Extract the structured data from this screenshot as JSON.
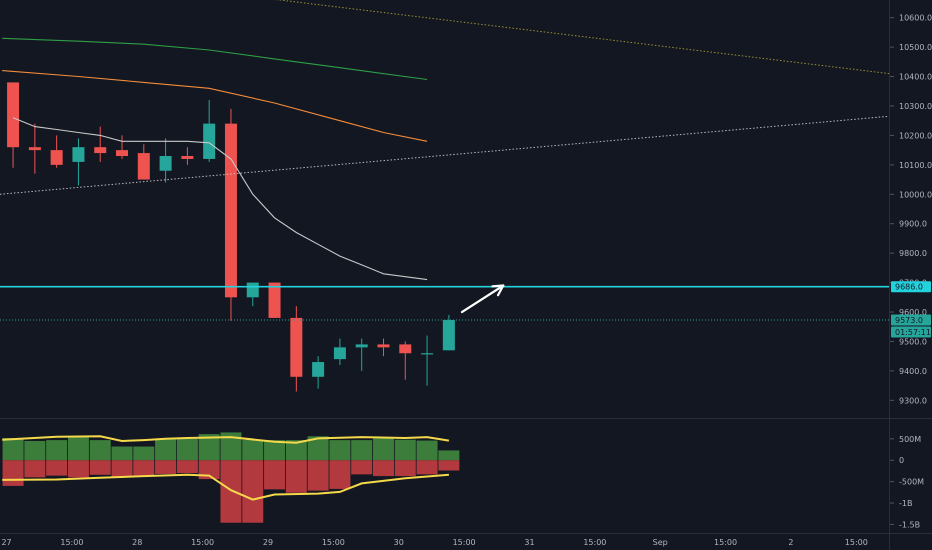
{
  "chart_data": {
    "type": "candlestick",
    "colors": {
      "background": "#131722",
      "up": "#26a69a",
      "down": "#ef5350",
      "grid": "#1e222d",
      "axis_text": "#b2b5be",
      "resistance": "#22d3dd",
      "last_price": "#26a69a",
      "ma_short": "#c9c9c9",
      "ma_mid": "#f48c3a",
      "ma_long": "#2e9e45",
      "ma_longest": "#b5a635",
      "trendline": "#d8d8d8",
      "vol_up": "#3d7d3b",
      "vol_down": "#b23a3f",
      "osc_line": "#f5d94a",
      "arrow": "#ffffff"
    },
    "price_axis": {
      "ylim": [
        9240,
        10660
      ],
      "ticks": [
        "10600.0",
        "10500.0",
        "10400.0",
        "10300.0",
        "10200.0",
        "10100.0",
        "10000.0",
        "9900.0",
        "9800.0",
        "9700.0",
        "9600.0",
        "9500.0",
        "9400.0",
        "9300.0"
      ],
      "tick_values": [
        10600,
        10500,
        10400,
        10300,
        10200,
        10100,
        10000,
        9900,
        9800,
        9700,
        9600,
        9500,
        9400,
        9300
      ]
    },
    "time_axis": {
      "labels": [
        "27",
        "15:00",
        "28",
        "15:00",
        "29",
        "15:00",
        "30",
        "15:00",
        "31",
        "15:00",
        "Sep",
        "15:00",
        "2",
        "15:00"
      ],
      "label_index": [
        -0.3,
        2.7,
        5.7,
        8.7,
        11.7,
        14.7,
        17.7,
        20.7,
        23.7,
        26.7,
        29.7,
        32.7,
        35.7,
        38.7
      ],
      "xlim": [
        -0.6,
        40.2
      ]
    },
    "candles": [
      {
        "o": 10380,
        "h": 10380,
        "l": 10090,
        "c": 10160
      },
      {
        "o": 10160,
        "h": 10240,
        "l": 10070,
        "c": 10150
      },
      {
        "o": 10150,
        "h": 10200,
        "l": 10090,
        "c": 10100
      },
      {
        "o": 10110,
        "h": 10190,
        "l": 10030,
        "c": 10160
      },
      {
        "o": 10160,
        "h": 10230,
        "l": 10110,
        "c": 10140
      },
      {
        "o": 10150,
        "h": 10200,
        "l": 10120,
        "c": 10130
      },
      {
        "o": 10140,
        "h": 10170,
        "l": 10060,
        "c": 10050
      },
      {
        "o": 10080,
        "h": 10190,
        "l": 10040,
        "c": 10130
      },
      {
        "o": 10130,
        "h": 10160,
        "l": 10100,
        "c": 10120
      },
      {
        "o": 10120,
        "h": 10320,
        "l": 10110,
        "c": 10240
      },
      {
        "o": 10240,
        "h": 10290,
        "l": 9570,
        "c": 9650
      },
      {
        "o": 9650,
        "h": 9700,
        "l": 9620,
        "c": 9700
      },
      {
        "o": 9700,
        "h": 9700,
        "l": 9580,
        "c": 9580
      },
      {
        "o": 9580,
        "h": 9620,
        "l": 9330,
        "c": 9380
      },
      {
        "o": 9380,
        "h": 9450,
        "l": 9340,
        "c": 9430
      },
      {
        "o": 9440,
        "h": 9510,
        "l": 9420,
        "c": 9480
      },
      {
        "o": 9480,
        "h": 9510,
        "l": 9400,
        "c": 9490
      },
      {
        "o": 9490,
        "h": 9510,
        "l": 9450,
        "c": 9480
      },
      {
        "o": 9490,
        "h": 9500,
        "l": 9370,
        "c": 9460
      },
      {
        "o": 9460,
        "h": 9520,
        "l": 9350,
        "c": 9460
      },
      {
        "o": 9470,
        "h": 9590,
        "l": 9470,
        "c": 9573
      }
    ],
    "moving_averages": [
      {
        "key": "ma_short",
        "points": [
          [
            0,
            10260
          ],
          [
            1,
            10230
          ],
          [
            2,
            10220
          ],
          [
            3,
            10210
          ],
          [
            4,
            10200
          ],
          [
            5,
            10180
          ],
          [
            6,
            10180
          ],
          [
            7,
            10180
          ],
          [
            8,
            10180
          ],
          [
            9,
            10175
          ],
          [
            10,
            10120
          ],
          [
            11,
            10000
          ],
          [
            12,
            9920
          ],
          [
            13,
            9870
          ],
          [
            14,
            9830
          ],
          [
            15,
            9790
          ],
          [
            16,
            9760
          ],
          [
            17,
            9730
          ],
          [
            18,
            9720
          ],
          [
            19,
            9710
          ]
        ]
      },
      {
        "key": "ma_mid",
        "points": [
          [
            -0.5,
            10420
          ],
          [
            3,
            10400
          ],
          [
            6,
            10380
          ],
          [
            9,
            10360
          ],
          [
            12,
            10310
          ],
          [
            15,
            10250
          ],
          [
            17,
            10210
          ],
          [
            19,
            10180
          ]
        ]
      },
      {
        "key": "ma_long",
        "points": [
          [
            -0.5,
            10530
          ],
          [
            3,
            10520
          ],
          [
            6,
            10510
          ],
          [
            9,
            10490
          ],
          [
            12,
            10460
          ],
          [
            15,
            10430
          ],
          [
            19,
            10390
          ]
        ]
      }
    ],
    "dotted_lines": [
      {
        "key": "ma_longest",
        "from": [
          10,
          10680
        ],
        "to": [
          40.2,
          10410
        ]
      },
      {
        "key": "trendline",
        "from": [
          -0.6,
          10000
        ],
        "to": [
          40.2,
          10265
        ]
      }
    ],
    "resistance": {
      "value": 9686,
      "label": "9686.0"
    },
    "last_price": {
      "value": 9573,
      "label": "9573.0",
      "countdown": "01:57:11"
    },
    "arrow": {
      "from": [
        20.6,
        9600
      ],
      "to": [
        22.5,
        9690
      ]
    },
    "volume_axis": {
      "ylim": [
        -1700000000,
        800000000
      ],
      "ticks": [
        "500M",
        "0",
        "-500M",
        "-1B",
        "-1.5B"
      ],
      "tick_values": [
        500000000,
        0,
        -500000000,
        -1000000000,
        -1500000000
      ]
    },
    "volume_bars": [
      {
        "up": 520000000,
        "down": -600000000
      },
      {
        "up": 450000000,
        "down": -400000000
      },
      {
        "up": 470000000,
        "down": -360000000
      },
      {
        "up": 560000000,
        "down": -400000000
      },
      {
        "up": 470000000,
        "down": -340000000
      },
      {
        "up": 320000000,
        "down": -400000000
      },
      {
        "up": 320000000,
        "down": -360000000
      },
      {
        "up": 500000000,
        "down": -320000000
      },
      {
        "up": 500000000,
        "down": -300000000
      },
      {
        "up": 610000000,
        "down": -440000000
      },
      {
        "up": 650000000,
        "down": -1460000000
      },
      {
        "up": 480000000,
        "down": -1460000000
      },
      {
        "up": 470000000,
        "down": -680000000
      },
      {
        "up": 470000000,
        "down": -760000000
      },
      {
        "up": 560000000,
        "down": -710000000
      },
      {
        "up": 470000000,
        "down": -670000000
      },
      {
        "up": 470000000,
        "down": -330000000
      },
      {
        "up": 510000000,
        "down": -370000000
      },
      {
        "up": 480000000,
        "down": -370000000
      },
      {
        "up": 460000000,
        "down": -330000000
      },
      {
        "up": 230000000,
        "down": -240000000
      }
    ],
    "osc_upper": [
      [
        -0.5,
        480000000
      ],
      [
        2,
        550000000
      ],
      [
        4,
        560000000
      ],
      [
        5,
        450000000
      ],
      [
        6,
        470000000
      ],
      [
        7,
        500000000
      ],
      [
        8,
        520000000
      ],
      [
        10,
        540000000
      ],
      [
        12,
        430000000
      ],
      [
        13,
        410000000
      ],
      [
        14,
        510000000
      ],
      [
        16,
        540000000
      ],
      [
        18,
        520000000
      ],
      [
        19,
        540000000
      ],
      [
        20,
        460000000
      ]
    ],
    "osc_lower": [
      [
        -0.5,
        -460000000
      ],
      [
        2,
        -450000000
      ],
      [
        4,
        -410000000
      ],
      [
        6,
        -370000000
      ],
      [
        8,
        -340000000
      ],
      [
        9,
        -360000000
      ],
      [
        10,
        -700000000
      ],
      [
        11,
        -920000000
      ],
      [
        12,
        -800000000
      ],
      [
        14,
        -780000000
      ],
      [
        15,
        -740000000
      ],
      [
        16,
        -540000000
      ],
      [
        18,
        -420000000
      ],
      [
        20,
        -340000000
      ]
    ]
  }
}
